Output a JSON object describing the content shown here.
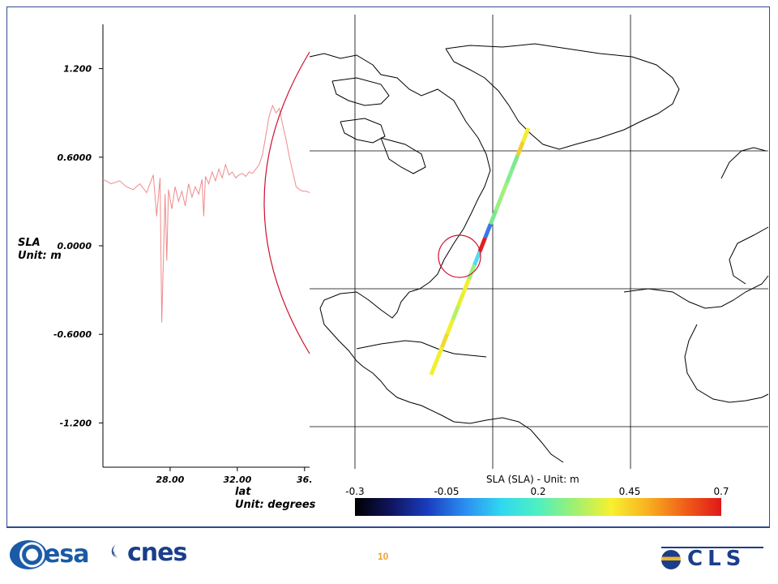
{
  "page": {
    "number": "10"
  },
  "logos": {
    "esa": "esa",
    "cnes": "cnes",
    "cls": "CLS"
  },
  "chart_data": [
    {
      "type": "line",
      "xlabel": "lat",
      "xunit": "Unit: degrees",
      "ylabel": "SLA",
      "yunit": "Unit: m",
      "x_ticks": [
        "28.00",
        "32.00",
        "36."
      ],
      "y_ticks": [
        "1.200",
        "0.6000",
        "0.0000",
        "-0.6000",
        "-1.200"
      ],
      "y_tick_values": [
        1.2,
        0.6,
        0.0,
        -0.6,
        -1.2
      ],
      "x_tick_values": [
        28,
        32,
        36
      ],
      "xlim": [
        24.0,
        36.3
      ],
      "ylim": [
        -1.5,
        1.5
      ],
      "series": [
        {
          "color": "#f08a8a",
          "x": [
            24.0,
            24.5,
            25.0,
            25.4,
            25.8,
            26.2,
            26.6,
            27.0,
            27.2,
            27.4,
            27.5,
            27.7,
            27.8,
            27.9,
            28.1,
            28.3,
            28.5,
            28.7,
            28.9,
            29.1,
            29.3,
            29.5,
            29.7,
            29.9,
            30.0,
            30.1,
            30.3,
            30.5,
            30.7,
            30.9,
            31.1,
            31.3,
            31.5,
            31.7,
            31.9,
            32.1,
            32.3,
            32.5,
            32.7,
            32.9,
            33.1,
            33.3,
            33.5,
            33.7,
            33.9,
            34.1,
            34.3,
            34.5,
            34.7,
            34.9,
            35.1,
            35.3,
            35.5,
            35.7,
            35.9,
            36.1,
            36.3
          ],
          "values": [
            0.45,
            0.42,
            0.44,
            0.4,
            0.38,
            0.42,
            0.36,
            0.48,
            0.2,
            0.46,
            -0.52,
            0.35,
            -0.1,
            0.38,
            0.25,
            0.4,
            0.3,
            0.37,
            0.27,
            0.42,
            0.33,
            0.4,
            0.35,
            0.45,
            0.2,
            0.47,
            0.42,
            0.5,
            0.44,
            0.52,
            0.46,
            0.55,
            0.48,
            0.5,
            0.46,
            0.48,
            0.49,
            0.47,
            0.5,
            0.49,
            0.52,
            0.55,
            0.62,
            0.75,
            0.88,
            0.95,
            0.9,
            0.93,
            0.82,
            0.72,
            0.6,
            0.5,
            0.4,
            0.38,
            0.37,
            0.37,
            0.36
          ]
        }
      ]
    },
    {
      "type": "colorbar",
      "title": "SLA  (SLA)  -  Unit: m",
      "tick_labels": [
        "-0.3",
        "-0.05",
        "0.2",
        "0.45",
        "0.7"
      ],
      "range": [
        -0.3,
        0.7
      ],
      "colors": [
        "#000000",
        "#101560",
        "#1a3ec0",
        "#2b8ef0",
        "#30d8f0",
        "#4ef0c0",
        "#a0f070",
        "#f8f030",
        "#f8b020",
        "#f06018",
        "#e01818"
      ]
    }
  ],
  "map": {
    "track_colors": [
      "#f2ef30",
      "#f2ef30",
      "#f3d830",
      "#f2ef30",
      "#b8f060",
      "#e8ef30",
      "#f2ef30",
      "#9af080",
      "#5ad8f0",
      "#e02020",
      "#3a78e8",
      "#7ce890",
      "#9af080",
      "#a6ee7a",
      "#86ec94",
      "#7ce890",
      "#f0d030",
      "#f2ef30"
    ],
    "highlight_color": "#d01030"
  }
}
